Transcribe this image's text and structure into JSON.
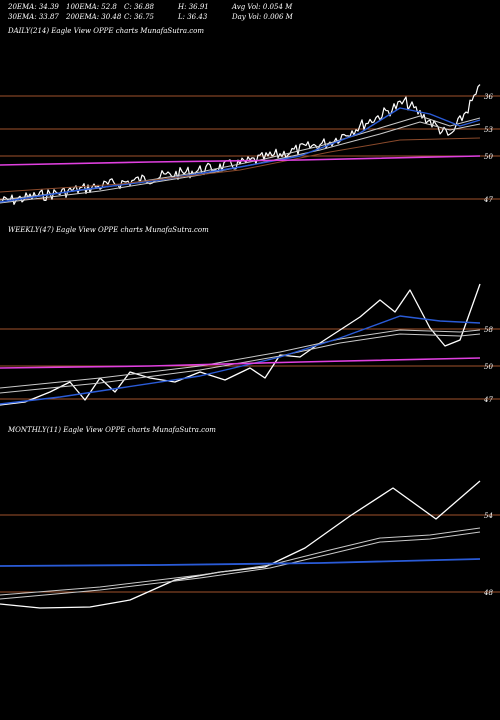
{
  "header": {
    "row1": [
      "20EMA: 34.39",
      "100EMA: 52.8",
      "C: 36.88",
      "H: 36.91",
      "Avg Vol: 0.054  M"
    ],
    "row2": [
      "30EMA: 33.87",
      "200EMA: 30.48",
      "C: 36.75",
      "L: 36.43",
      "Day Vol: 0.006  M"
    ]
  },
  "colors": {
    "background": "#000000",
    "price": "#ffffff",
    "ema_short": "#2a5bd7",
    "ema_long": "#e040e0",
    "ema_mid": "#c9c9c9",
    "ema_brown": "#8b4a2b",
    "level": "#a0522d"
  },
  "chart_data": [
    {
      "type": "line",
      "label": "DAILY(214) Eagle  View  OPPE charts MunafaSutra.com",
      "ylim": [
        44.5,
        37.5
      ],
      "levels": [
        {
          "value": 36,
          "label": "36"
        },
        {
          "value": 53,
          "label": "53"
        },
        {
          "value": 50,
          "label": "50"
        },
        {
          "value": 47,
          "label": "47"
        }
      ]
    },
    {
      "type": "line",
      "label": "WEEKLY(47) Eagle  View  OPPE charts MunafaSutra.com",
      "levels": [
        {
          "value": 58,
          "label": "58"
        },
        {
          "value": 50,
          "label": "50"
        },
        {
          "value": 47,
          "label": "47"
        }
      ]
    },
    {
      "type": "line",
      "label": "MONTHLY(11) Eagle  View  OPPE charts MunafaSutra.com",
      "levels": [
        {
          "value": 54,
          "label": "54"
        },
        {
          "value": 48,
          "label": "48"
        }
      ]
    }
  ]
}
